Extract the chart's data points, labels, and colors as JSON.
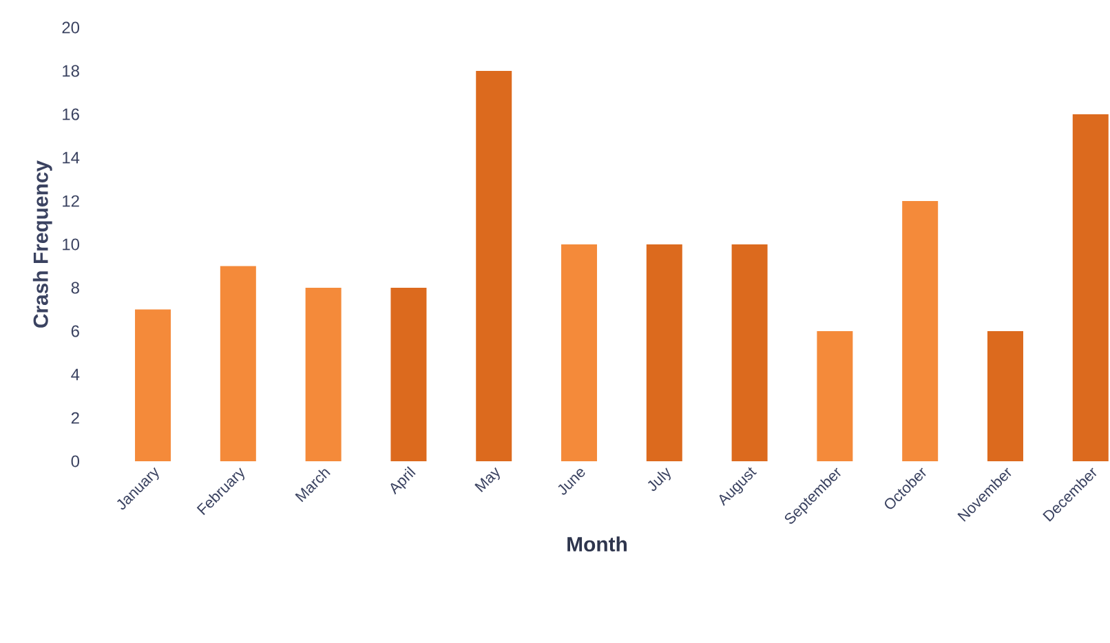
{
  "chart_data": {
    "type": "bar",
    "xlabel": "Month",
    "ylabel": "Crash Frequency",
    "categories": [
      "January",
      "February",
      "March",
      "April",
      "May",
      "June",
      "July",
      "August",
      "September",
      "October",
      "November",
      "December"
    ],
    "values": [
      7,
      9,
      8,
      8,
      18,
      10,
      10,
      10,
      6,
      12,
      6,
      16
    ],
    "colors": [
      "#f48a3a",
      "#f48a3a",
      "#f48a3a",
      "#dc6a1e",
      "#dc6a1e",
      "#f48a3a",
      "#dc6a1e",
      "#dc6a1e",
      "#f48a3a",
      "#f48a3a",
      "#dc6a1e",
      "#dc6a1e"
    ],
    "ylim": [
      0,
      20
    ],
    "yticks": [
      0,
      2,
      4,
      6,
      8,
      10,
      12,
      14,
      16,
      18,
      20
    ]
  }
}
